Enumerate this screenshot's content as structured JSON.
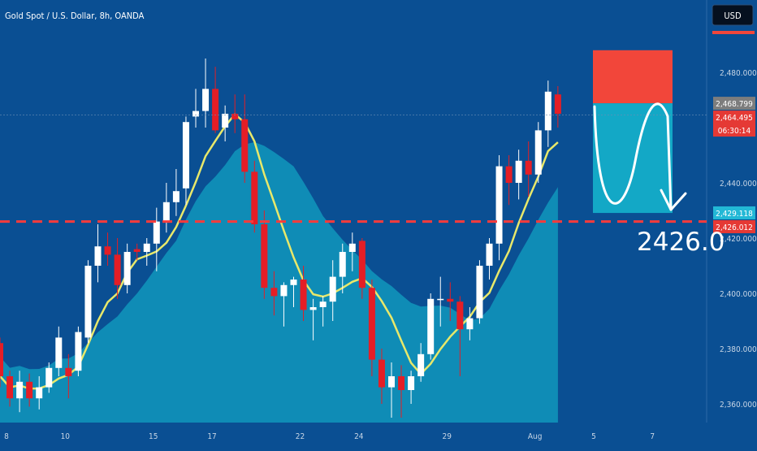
{
  "header": {
    "symbol_title": "Gold Spot / U.S. Dollar, 8h, OANDA",
    "currency_button": "USD"
  },
  "chart_data": {
    "type": "candlestick",
    "title": "Gold Spot / U.S. Dollar, 8h, OANDA",
    "currency": "USD",
    "y_ticks": [
      {
        "value": 2360,
        "label": "2,360.000"
      },
      {
        "value": 2380,
        "label": "2,380.000"
      },
      {
        "value": 2400,
        "label": "2,400.000"
      },
      {
        "value": 2420,
        "label": "2,420.000"
      },
      {
        "value": 2440,
        "label": "2,440.000"
      },
      {
        "value": 2480,
        "label": "2,480.000"
      }
    ],
    "x_ticks": [
      {
        "index": 0,
        "label": "8"
      },
      {
        "index": 6,
        "label": "10"
      },
      {
        "index": 15,
        "label": "15"
      },
      {
        "index": 21,
        "label": "17"
      },
      {
        "index": 30,
        "label": "22"
      },
      {
        "index": 36,
        "label": "24"
      },
      {
        "index": 45,
        "label": "29"
      },
      {
        "index": 54,
        "label": "Aug"
      },
      {
        "index": 60,
        "label": "5"
      },
      {
        "index": 66,
        "label": "7"
      }
    ],
    "candles": [
      [
        2382,
        2384,
        2366,
        2370
      ],
      [
        2370,
        2372,
        2359,
        2362
      ],
      [
        2362,
        2372,
        2357,
        2368
      ],
      [
        2368,
        2371,
        2359,
        2362
      ],
      [
        2362,
        2370,
        2358,
        2366
      ],
      [
        2366,
        2375,
        2364,
        2373
      ],
      [
        2373,
        2388,
        2370,
        2384
      ],
      [
        2373,
        2378,
        2362,
        2370
      ],
      [
        2372,
        2388,
        2370,
        2386
      ],
      [
        2384,
        2412,
        2382,
        2410
      ],
      [
        2410,
        2425,
        2404,
        2417
      ],
      [
        2417,
        2422,
        2410,
        2414
      ],
      [
        2414,
        2420,
        2398,
        2403
      ],
      [
        2403,
        2418,
        2400,
        2415
      ],
      [
        2416,
        2418,
        2412,
        2415
      ],
      [
        2415,
        2420,
        2410,
        2418
      ],
      [
        2418,
        2431,
        2408,
        2426
      ],
      [
        2426,
        2440,
        2422,
        2433
      ],
      [
        2433,
        2445,
        2428,
        2437
      ],
      [
        2438,
        2464,
        2432,
        2462
      ],
      [
        2464,
        2474,
        2460,
        2466
      ],
      [
        2466,
        2485,
        2460,
        2474
      ],
      [
        2474,
        2482,
        2458,
        2459
      ],
      [
        2460,
        2468,
        2455,
        2465
      ],
      [
        2465,
        2472,
        2458,
        2463
      ],
      [
        2463,
        2472,
        2440,
        2444
      ],
      [
        2444,
        2448,
        2422,
        2425
      ],
      [
        2425,
        2430,
        2398,
        2402
      ],
      [
        2402,
        2408,
        2392,
        2399
      ],
      [
        2399,
        2404,
        2388,
        2403
      ],
      [
        2403,
        2406,
        2395,
        2405
      ],
      [
        2405,
        2410,
        2390,
        2394
      ],
      [
        2394,
        2398,
        2383,
        2395
      ],
      [
        2395,
        2399,
        2388,
        2397
      ],
      [
        2397,
        2412,
        2390,
        2406
      ],
      [
        2406,
        2418,
        2400,
        2415
      ],
      [
        2415,
        2422,
        2408,
        2418
      ],
      [
        2419,
        2420,
        2398,
        2402
      ],
      [
        2402,
        2405,
        2370,
        2376
      ],
      [
        2376,
        2380,
        2360,
        2366
      ],
      [
        2366,
        2375,
        2355,
        2370
      ],
      [
        2370,
        2374,
        2355,
        2365
      ],
      [
        2365,
        2372,
        2360,
        2370
      ],
      [
        2370,
        2382,
        2368,
        2378
      ],
      [
        2378,
        2400,
        2376,
        2398
      ],
      [
        2398,
        2406,
        2388,
        2398
      ],
      [
        2398,
        2404,
        2390,
        2397
      ],
      [
        2397,
        2399,
        2370,
        2387
      ],
      [
        2387,
        2395,
        2383,
        2391
      ],
      [
        2391,
        2412,
        2389,
        2410
      ],
      [
        2410,
        2420,
        2405,
        2418
      ],
      [
        2418,
        2450,
        2412,
        2446
      ],
      [
        2446,
        2450,
        2432,
        2440
      ],
      [
        2440,
        2452,
        2434,
        2448
      ],
      [
        2448,
        2455,
        2435,
        2443
      ],
      [
        2443,
        2462,
        2440,
        2459
      ],
      [
        2459,
        2477,
        2453,
        2473
      ],
      [
        2472,
        2475,
        2460,
        2465
      ]
    ],
    "annotations": {
      "price_line": 2426.0,
      "target_label": "2426.0",
      "zone_stop": [
        2468.8,
        2488
      ],
      "zone_target": [
        2429.1,
        2468.8
      ]
    },
    "price_labels": [
      {
        "value": 2468.799,
        "label": "2,468.799",
        "color": "#7d7d7d"
      },
      {
        "value": 2464.495,
        "label": "2,464.495",
        "color": "#e53935",
        "sub": "06:30:14"
      },
      {
        "value": 2429.118,
        "label": "2,429.118",
        "color": "#22b8d6"
      },
      {
        "value": 2426.012,
        "label": "2,426.012",
        "color": "#e53935"
      }
    ],
    "colors": {
      "background": "#0a4f93",
      "up_candle": "#ffffff",
      "down_candle": "#e41e26",
      "ma_line": "#e8e86a",
      "area_fill": "#1196bc",
      "stop_zone": "#f2463a",
      "target_zone": "#13a8c6",
      "dashed_line": "#ff3b3b"
    }
  }
}
